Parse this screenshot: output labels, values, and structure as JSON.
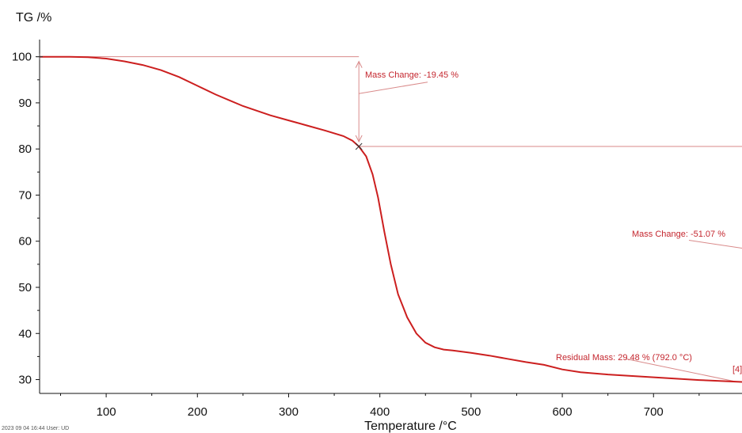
{
  "chart_data": {
    "type": "line",
    "title": "",
    "ylabel": "TG /%",
    "xlabel": "Temperature /°C",
    "xlim": [
      27,
      797
    ],
    "ylim": [
      27,
      102
    ],
    "x_ticks": [
      100,
      200,
      300,
      400,
      500,
      600,
      700
    ],
    "y_ticks": [
      30,
      40,
      50,
      60,
      70,
      80,
      90,
      100
    ],
    "grid": false,
    "colors": {
      "curve": "#cc1f1f",
      "annotation": "#c4262e",
      "axis": "#111111"
    },
    "series": [
      {
        "x": [
          27,
          60,
          80,
          100,
          120,
          140,
          160,
          180,
          200,
          220,
          250,
          280,
          300,
          320,
          340,
          360,
          370,
          377,
          385,
          392,
          398,
          405,
          412,
          420,
          430,
          440,
          450,
          460,
          470,
          480,
          500,
          520,
          540,
          560,
          580,
          600,
          620,
          650,
          700,
          750,
          797
        ],
        "y": [
          100,
          100,
          99.9,
          99.6,
          99.0,
          98.2,
          97.1,
          95.6,
          93.7,
          91.8,
          89.3,
          87.3,
          86.2,
          85.1,
          84.0,
          82.8,
          81.8,
          80.55,
          78.4,
          74.5,
          69.5,
          62.0,
          55.0,
          48.5,
          43.5,
          40.0,
          38.0,
          37.0,
          36.5,
          36.3,
          35.8,
          35.2,
          34.5,
          33.8,
          33.2,
          32.2,
          31.6,
          31.1,
          30.5,
          29.9,
          29.48
        ]
      }
    ],
    "annotations": {
      "mass_change_1": "Mass Change: -19.45 %",
      "mass_change_2": "Mass Change: -51.07 %",
      "residual_mass": "Residual Mass: 29.48 % (792.0 °C)",
      "marker_label": "[4]"
    },
    "annotation_values": {
      "step1_start": {
        "x": 27,
        "y": 100
      },
      "step1_end": {
        "x": 377,
        "y": 80.55
      },
      "residual_point": {
        "x": 792,
        "y": 29.48
      }
    }
  },
  "footer": {
    "text": "2023 09 04 16:44 User: UD"
  }
}
